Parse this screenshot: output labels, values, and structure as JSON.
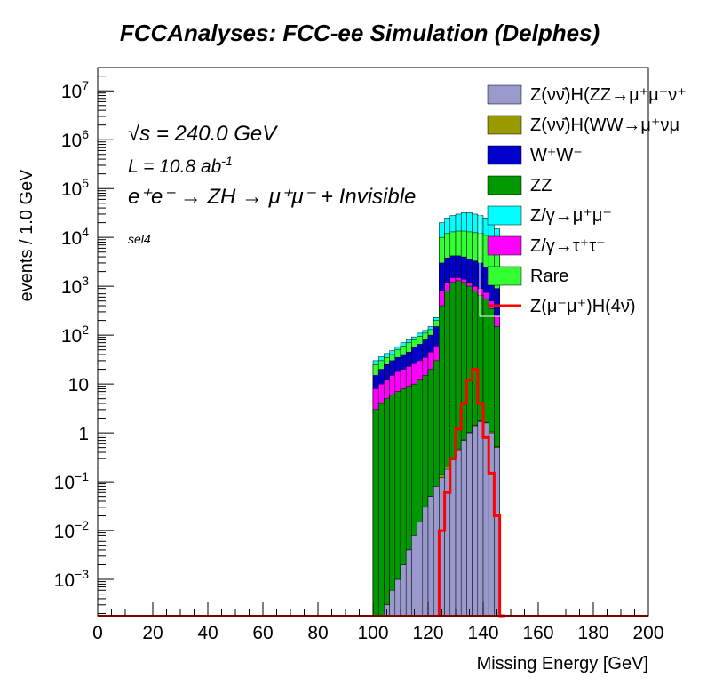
{
  "chart_data": {
    "type": "area",
    "title": "FCCAnalyses: FCC-ee Simulation (Delphes)",
    "xlabel": "Missing Energy [GeV]",
    "ylabel": "events / 1.0 GeV",
    "xlim": [
      0,
      200
    ],
    "ylim": [
      0.00018,
      30000000
    ],
    "y_scale": "log",
    "x_ticks": [
      "0",
      "20",
      "40",
      "60",
      "80",
      "100",
      "120",
      "140",
      "160",
      "180",
      "200"
    ],
    "y_ticks": [
      {
        "value": 0.001,
        "base": "10",
        "exp": "−3"
      },
      {
        "value": 0.01,
        "base": "10",
        "exp": "−2"
      },
      {
        "value": 0.1,
        "base": "10",
        "exp": "−1"
      },
      {
        "value": 1,
        "base": "1",
        "exp": ""
      },
      {
        "value": 10,
        "base": "10",
        "exp": ""
      },
      {
        "value": 100,
        "base": "10",
        "exp": "2"
      },
      {
        "value": 1000,
        "base": "10",
        "exp": "3"
      },
      {
        "value": 10000,
        "base": "10",
        "exp": "4"
      },
      {
        "value": 100000,
        "base": "10",
        "exp": "5"
      },
      {
        "value": 1000000,
        "base": "10",
        "exp": "6"
      },
      {
        "value": 10000000,
        "base": "10",
        "exp": "7"
      }
    ],
    "annotations": {
      "sqrts": "√s = 240.0 GeV",
      "lumi": "L = 10.8 ab",
      "lumi_exp": "-1",
      "process": "e⁺e⁻ → ZH → μ⁺μ⁻ + Invisible",
      "selection": "sel4"
    },
    "legend_position": "top-right",
    "x": [
      100,
      102,
      104,
      106,
      108,
      110,
      112,
      114,
      116,
      118,
      120,
      122,
      124,
      126,
      128,
      130,
      132,
      134,
      136,
      138,
      140,
      142,
      144,
      146
    ],
    "stack_cumulative": [
      {
        "name": "Z(νν̄)H(ZZ→μ⁺μ⁻ν⁺",
        "color": "#9999cc",
        "values": [
          0.00018,
          0.00018,
          0.0003,
          0.0006,
          0.001,
          0.002,
          0.004,
          0.008,
          0.015,
          0.03,
          0.05,
          0.08,
          0.12,
          0.18,
          0.28,
          0.45,
          0.7,
          1.0,
          1.4,
          1.7,
          1.6,
          1.0,
          0.5,
          0.00018
        ]
      },
      {
        "name": "Z(νν̄)H(WW→μ⁺νμ",
        "color": "#999900",
        "values": [
          0.00018,
          0.00018,
          0.0003,
          0.0006,
          0.001,
          0.002,
          0.004,
          0.008,
          0.015,
          0.03,
          0.05,
          0.08,
          0.14,
          0.2,
          0.3,
          0.47,
          0.72,
          1.02,
          1.45,
          1.75,
          1.65,
          1.05,
          0.52,
          0.00018
        ]
      },
      {
        "name": "ZZ",
        "color": "#009900",
        "values": [
          3,
          4,
          5,
          6,
          7,
          8,
          9,
          10,
          12,
          15,
          20,
          30,
          400,
          800,
          1200,
          1300,
          1200,
          1000,
          800,
          650,
          550,
          350,
          150,
          0.00018
        ]
      },
      {
        "name": "Z/γ→τ⁺τ⁻",
        "color": "#ff00ff",
        "values": [
          8,
          10,
          12,
          15,
          18,
          20,
          23,
          26,
          30,
          35,
          45,
          60,
          800,
          1200,
          1500,
          1500,
          1400,
          1200,
          1000,
          900,
          750,
          500,
          250,
          0.00018
        ]
      },
      {
        "name": "W⁺W⁻",
        "color": "#0000cc",
        "values": [
          15,
          20,
          25,
          30,
          35,
          40,
          45,
          55,
          65,
          80,
          100,
          150,
          3000,
          3800,
          4200,
          4200,
          4000,
          3600,
          3300,
          3000,
          2500,
          1800,
          900,
          0.00018
        ]
      },
      {
        "name": "Rare",
        "color": "#33ff33",
        "values": [
          25,
          30,
          35,
          40,
          50,
          60,
          70,
          80,
          95,
          110,
          130,
          200,
          10000,
          12000,
          13000,
          13500,
          13500,
          13000,
          12500,
          12000,
          11000,
          9000,
          6000,
          0.00018
        ]
      },
      {
        "name": "Z/γ→μ⁺μ⁻",
        "color": "#00ffff",
        "values": [
          30,
          36,
          42,
          48,
          58,
          70,
          80,
          92,
          110,
          125,
          150,
          230,
          20000,
          25000,
          28000,
          30000,
          32000,
          32000,
          30000,
          28000,
          25000,
          22000,
          15000,
          0.00018
        ]
      }
    ],
    "signal": {
      "name": "Z(μ⁻μ⁺)H(4ν̄)",
      "color": "#ff0000",
      "x": [
        124,
        126,
        128,
        130,
        132,
        134,
        136,
        138,
        140,
        142,
        144,
        146
      ],
      "values": [
        0.01,
        0.06,
        0.3,
        1.2,
        4,
        12,
        20,
        4,
        0.8,
        0.15,
        0.02,
        0.00018
      ]
    },
    "legend": [
      {
        "label": "Z(νν̄)H(ZZ→μ⁺μ⁻ν⁺",
        "color": "#9999cc",
        "kind": "fill"
      },
      {
        "label": "Z(νν̄)H(WW→μ⁺νμ",
        "color": "#999900",
        "kind": "fill"
      },
      {
        "label": "W⁺W⁻",
        "color": "#0000cc",
        "kind": "fill"
      },
      {
        "label": "ZZ",
        "color": "#009900",
        "kind": "fill"
      },
      {
        "label": "Z/γ→μ⁺μ⁻",
        "color": "#00ffff",
        "kind": "fill"
      },
      {
        "label": "Z/γ→τ⁺τ⁻",
        "color": "#ff00ff",
        "kind": "fill"
      },
      {
        "label": "Rare",
        "color": "#33ff33",
        "kind": "fill"
      },
      {
        "label": "Z(μ⁻μ⁺)H(4ν̄)",
        "color": "#ff0000",
        "kind": "line"
      }
    ]
  }
}
